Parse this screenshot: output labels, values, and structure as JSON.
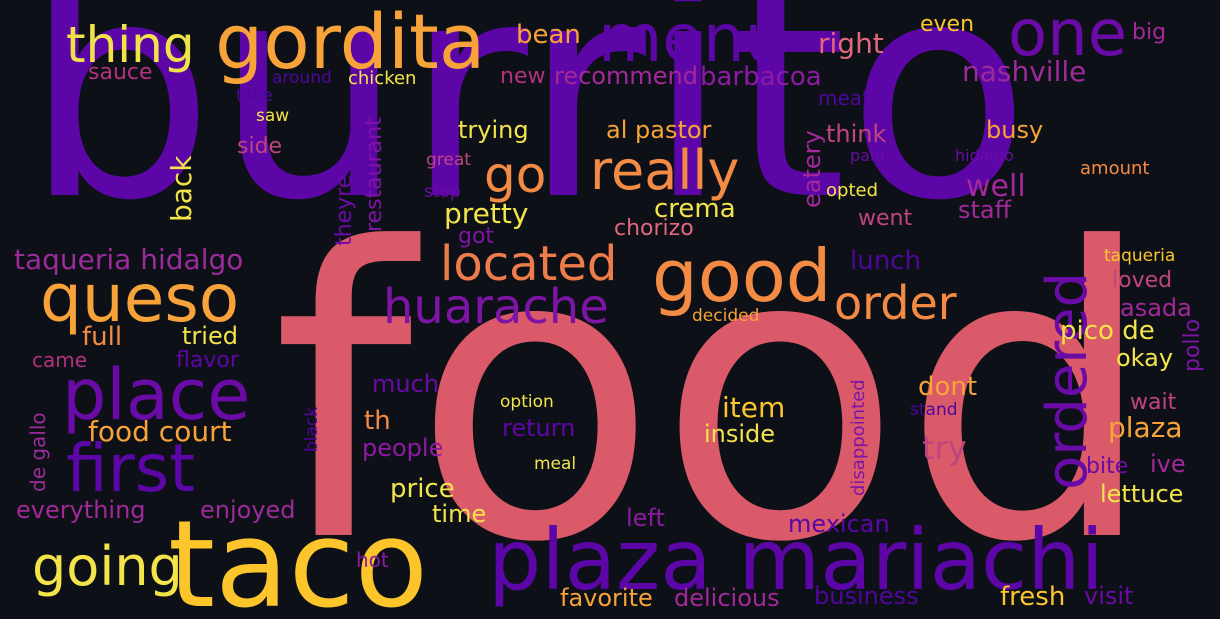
{
  "palette": {
    "background": "#0d1117",
    "purple": "#5c06a8",
    "violet": "#8e1aa4",
    "magenta": "#b2317f",
    "coral": "#da5a6a",
    "orange": "#f48b44",
    "amber": "#fdb42f",
    "yellow": "#f3e44a"
  },
  "words": [
    {
      "text": "burrito",
      "color": "#5c06a8"
    },
    {
      "text": "food",
      "color": "#da5a6a"
    },
    {
      "text": "taco",
      "color": "#fdc52c"
    },
    {
      "text": "plaza mariachi",
      "color": "#5c06a8"
    },
    {
      "text": "gordita",
      "color": "#f8a23a"
    },
    {
      "text": "menu",
      "color": "#5c06a8"
    },
    {
      "text": "one",
      "color": "#6a0aa7"
    },
    {
      "text": "thing",
      "color": "#f0e34a"
    },
    {
      "text": "queso",
      "color": "#f8a23a"
    },
    {
      "text": "place",
      "color": "#6a0aa7"
    },
    {
      "text": "first",
      "color": "#5c06a8"
    },
    {
      "text": "going",
      "color": "#f3e44a"
    },
    {
      "text": "good",
      "color": "#f48b44"
    },
    {
      "text": "really",
      "color": "#f48b44"
    },
    {
      "text": "go",
      "color": "#f48b44"
    },
    {
      "text": "located",
      "color": "#ee7c4a"
    },
    {
      "text": "huarache",
      "color": "#7e14a6"
    },
    {
      "text": "order",
      "color": "#f48b44"
    },
    {
      "text": "ordered",
      "color": "#6a0aa7"
    },
    {
      "text": "taqueria hidalgo",
      "color": "#9c2a9a"
    },
    {
      "text": "bean",
      "color": "#f8a23a"
    },
    {
      "text": "right",
      "color": "#e1687a"
    },
    {
      "text": "even",
      "color": "#fdc52c"
    },
    {
      "text": "big",
      "color": "#a3289a"
    },
    {
      "text": "nashville",
      "color": "#9c2a9a"
    },
    {
      "text": "sauce",
      "color": "#b2317f"
    },
    {
      "text": "around",
      "color": "#4e069c"
    },
    {
      "text": "chicken",
      "color": "#f3e44a"
    },
    {
      "text": "new",
      "color": "#b2317f"
    },
    {
      "text": "recommend",
      "color": "#a3289a"
    },
    {
      "text": "barbacoa",
      "color": "#8e1aa4"
    },
    {
      "text": "take",
      "color": "#4e069c"
    },
    {
      "text": "saw",
      "color": "#f3e44a"
    },
    {
      "text": "side",
      "color": "#c04480"
    },
    {
      "text": "meat",
      "color": "#4e069c"
    },
    {
      "text": "busy",
      "color": "#f8a23a"
    },
    {
      "text": "trying",
      "color": "#f3e44a"
    },
    {
      "text": "al pastor",
      "color": "#f8a23a"
    },
    {
      "text": "think",
      "color": "#c04480"
    },
    {
      "text": "paid",
      "color": "#6a0aa7"
    },
    {
      "text": "hidalgo",
      "color": "#6a0aa7"
    },
    {
      "text": "amount",
      "color": "#f48b44"
    },
    {
      "text": "great",
      "color": "#c04480"
    },
    {
      "text": "stop",
      "color": "#6a0aa7"
    },
    {
      "text": "opted",
      "color": "#f3e44a"
    },
    {
      "text": "well",
      "color": "#a3289a"
    },
    {
      "text": "staff",
      "color": "#a3289a"
    },
    {
      "text": "back",
      "color": "#f3e44a"
    },
    {
      "text": "theyre",
      "color": "#6a0aa7"
    },
    {
      "text": "restaurant",
      "color": "#7e14a6"
    },
    {
      "text": "eatery",
      "color": "#a3289a"
    },
    {
      "text": "pretty",
      "color": "#f3e44a"
    },
    {
      "text": "crema",
      "color": "#f3e44a"
    },
    {
      "text": "got",
      "color": "#7e14a6"
    },
    {
      "text": "chorizo",
      "color": "#e1687a"
    },
    {
      "text": "went",
      "color": "#c04480"
    },
    {
      "text": "lunch",
      "color": "#4e069c"
    },
    {
      "text": "taqueria",
      "color": "#fdc52c"
    },
    {
      "text": "loved",
      "color": "#c04480"
    },
    {
      "text": "asada",
      "color": "#a3289a"
    },
    {
      "text": "full",
      "color": "#f48b44"
    },
    {
      "text": "tried",
      "color": "#f3e44a"
    },
    {
      "text": "decided",
      "color": "#f8a23a"
    },
    {
      "text": "pollo",
      "color": "#7e14a6"
    },
    {
      "text": "pico de",
      "color": "#f3e44a"
    },
    {
      "text": "came",
      "color": "#b2317f"
    },
    {
      "text": "flavor",
      "color": "#5c06a8"
    },
    {
      "text": "okay",
      "color": "#f3e44a"
    },
    {
      "text": "much",
      "color": "#6a0aa7"
    },
    {
      "text": "dont",
      "color": "#f8a23a"
    },
    {
      "text": "disappointed",
      "color": "#7e14a6"
    },
    {
      "text": "de gallo",
      "color": "#9c2a9a"
    },
    {
      "text": "black",
      "color": "#4e069c"
    },
    {
      "text": "option",
      "color": "#f3e44a"
    },
    {
      "text": "stand",
      "color": "#4e069c"
    },
    {
      "text": "wait",
      "color": "#c04480"
    },
    {
      "text": "food court",
      "color": "#f8a23a"
    },
    {
      "text": "th",
      "color": "#f48b44"
    },
    {
      "text": "item",
      "color": "#fdc52c"
    },
    {
      "text": "return",
      "color": "#5c06a8"
    },
    {
      "text": "plaza",
      "color": "#f8a23a"
    },
    {
      "text": "people",
      "color": "#8e1aa4"
    },
    {
      "text": "inside",
      "color": "#f3e44a"
    },
    {
      "text": "try",
      "color": "#c04480"
    },
    {
      "text": "meal",
      "color": "#f3e44a"
    },
    {
      "text": "bite",
      "color": "#6a0aa7"
    },
    {
      "text": "ive",
      "color": "#a3289a"
    },
    {
      "text": "price",
      "color": "#f3e44a"
    },
    {
      "text": "lettuce",
      "color": "#f3e44a"
    },
    {
      "text": "everything",
      "color": "#a3289a"
    },
    {
      "text": "enjoyed",
      "color": "#9c2a9a"
    },
    {
      "text": "time",
      "color": "#f3e44a"
    },
    {
      "text": "left",
      "color": "#8e1aa4"
    },
    {
      "text": "mexican",
      "color": "#5c06a8"
    },
    {
      "text": "hot",
      "color": "#8e1aa4"
    },
    {
      "text": "favorite",
      "color": "#f8a23a"
    },
    {
      "text": "delicious",
      "color": "#a3289a"
    },
    {
      "text": "business",
      "color": "#4e069c"
    },
    {
      "text": "fresh",
      "color": "#fdc52c"
    },
    {
      "text": "visit",
      "color": "#6a0aa7"
    }
  ]
}
